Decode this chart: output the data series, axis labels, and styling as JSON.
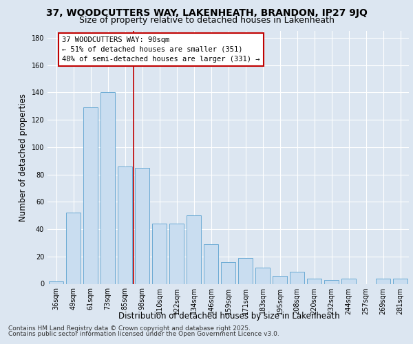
{
  "title": "37, WOODCUTTERS WAY, LAKENHEATH, BRANDON, IP27 9JQ",
  "subtitle": "Size of property relative to detached houses in Lakenheath",
  "xlabel": "Distribution of detached houses by size in Lakenheath",
  "ylabel": "Number of detached properties",
  "categories": [
    "36sqm",
    "49sqm",
    "61sqm",
    "73sqm",
    "85sqm",
    "98sqm",
    "110sqm",
    "122sqm",
    "134sqm",
    "146sqm",
    "159sqm",
    "171sqm",
    "183sqm",
    "195sqm",
    "208sqm",
    "220sqm",
    "232sqm",
    "244sqm",
    "257sqm",
    "269sqm",
    "281sqm"
  ],
  "values": [
    2,
    52,
    129,
    140,
    86,
    85,
    44,
    44,
    50,
    29,
    16,
    19,
    12,
    6,
    9,
    4,
    3,
    4,
    0,
    4,
    4
  ],
  "bar_color": "#c9ddf0",
  "bar_edge_color": "#6aaad4",
  "vline_bar_index": 4,
  "vline_color": "#c00000",
  "annotation_line1": "37 WOODCUTTERS WAY: 90sqm",
  "annotation_line2": "← 51% of detached houses are smaller (351)",
  "annotation_line3": "48% of semi-detached houses are larger (331) →",
  "annotation_box_color": "#ffffff",
  "annotation_box_edge_color": "#c00000",
  "ylim": [
    0,
    185
  ],
  "yticks": [
    0,
    20,
    40,
    60,
    80,
    100,
    120,
    140,
    160,
    180
  ],
  "background_color": "#dce6f1",
  "footer_line1": "Contains HM Land Registry data © Crown copyright and database right 2025.",
  "footer_line2": "Contains public sector information licensed under the Open Government Licence v3.0.",
  "title_fontsize": 10,
  "subtitle_fontsize": 9,
  "axis_label_fontsize": 8.5,
  "tick_fontsize": 7,
  "annotation_fontsize": 7.5,
  "footer_fontsize": 6.5
}
